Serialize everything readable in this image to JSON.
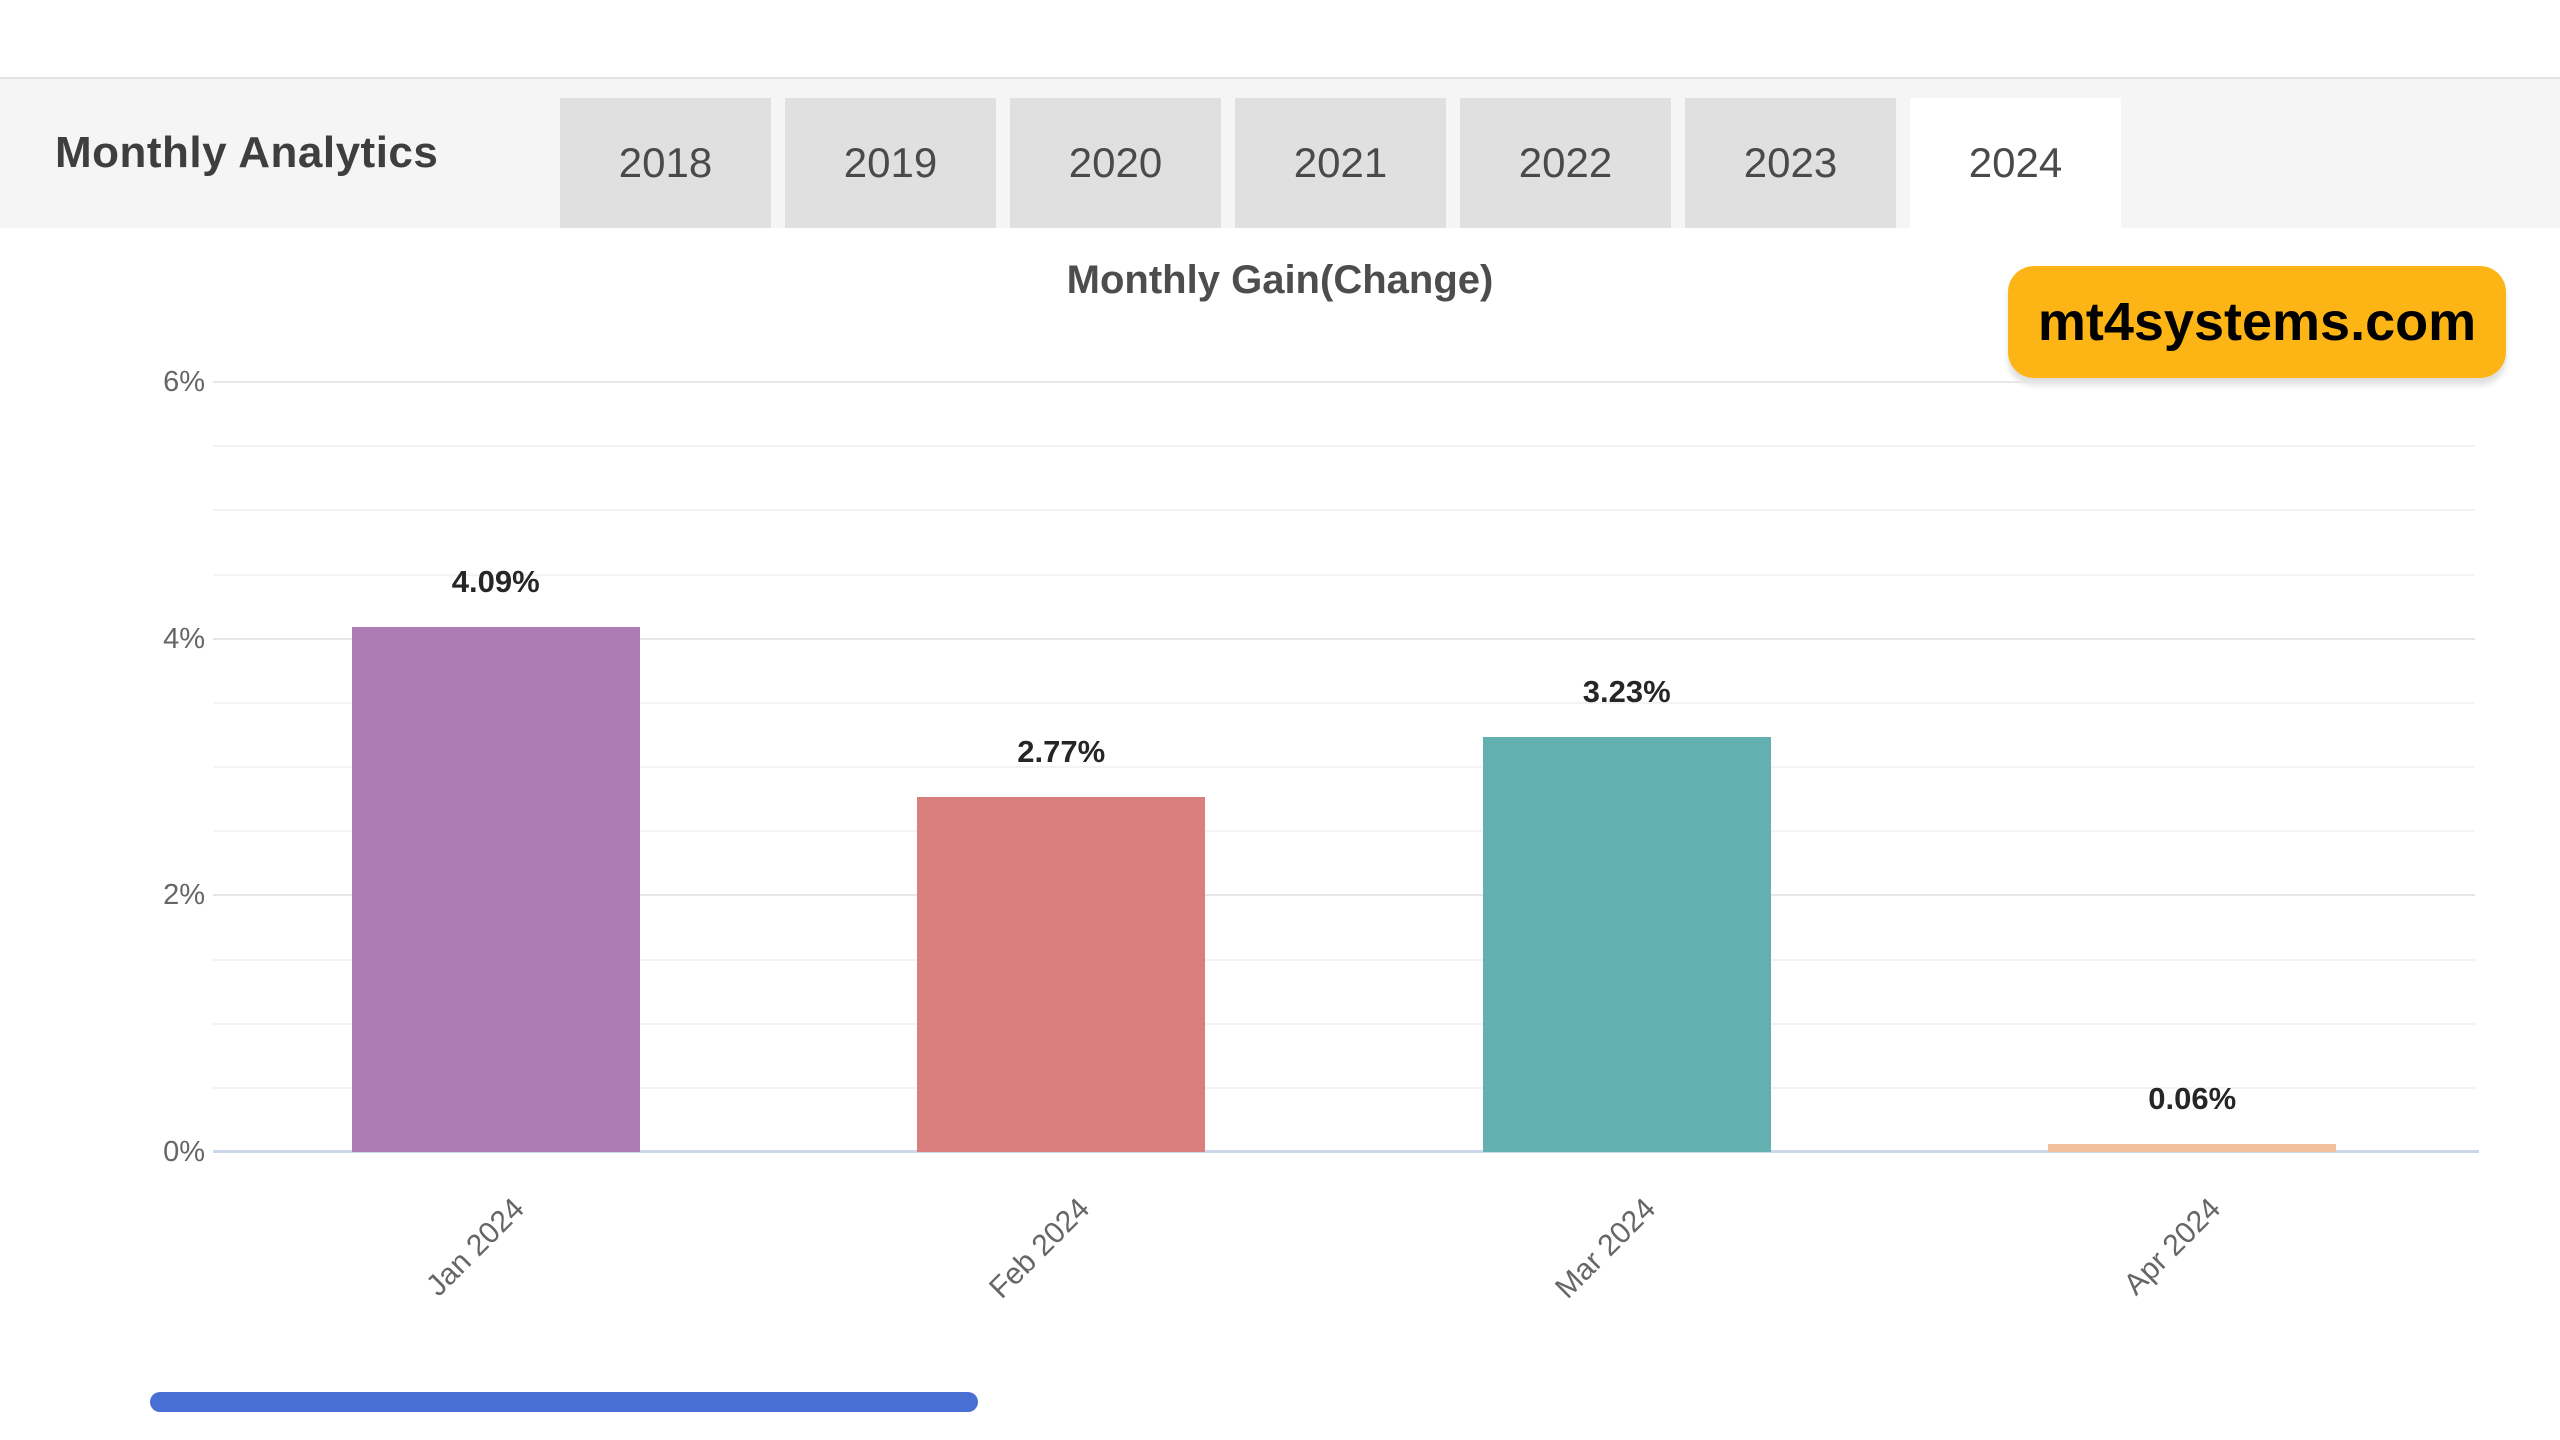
{
  "header": {
    "title": "Monthly Analytics",
    "tabs": [
      {
        "label": "2018",
        "active": false
      },
      {
        "label": "2019",
        "active": false
      },
      {
        "label": "2020",
        "active": false
      },
      {
        "label": "2021",
        "active": false
      },
      {
        "label": "2022",
        "active": false
      },
      {
        "label": "2023",
        "active": false
      },
      {
        "label": "2024",
        "active": true
      }
    ],
    "inactive_tab_color": "#e0e0e0",
    "active_tab_color": "#ffffff"
  },
  "watermark": {
    "label": "mt4systems.com",
    "bg_color": "#fcb514",
    "text_color": "#000000"
  },
  "chart_data": {
    "type": "bar",
    "title": "Monthly Gain(Change)",
    "categories": [
      "Jan 2024",
      "Feb 2024",
      "Mar 2024",
      "Apr 2024"
    ],
    "values": [
      4.09,
      2.77,
      3.23,
      0.06
    ],
    "data_labels": [
      "4.09%",
      "2.77%",
      "3.23%",
      "0.06%"
    ],
    "bar_colors": [
      "#ae7cb5",
      "#d97f7d",
      "#62b1b0",
      "#f1c19e"
    ],
    "xlabel": "",
    "ylabel": "",
    "y_ticks": [
      "0%",
      "2%",
      "4%",
      "6%"
    ],
    "y_tick_values": [
      0,
      2,
      4,
      6
    ],
    "ylim": [
      0,
      6.2
    ],
    "minor_tick_interval": 0.5,
    "grid": true,
    "legend": "none",
    "zero_axis_line_color": "#ccd6eb"
  },
  "bottom_scrollbar": {
    "color": "#4a6fd4"
  }
}
